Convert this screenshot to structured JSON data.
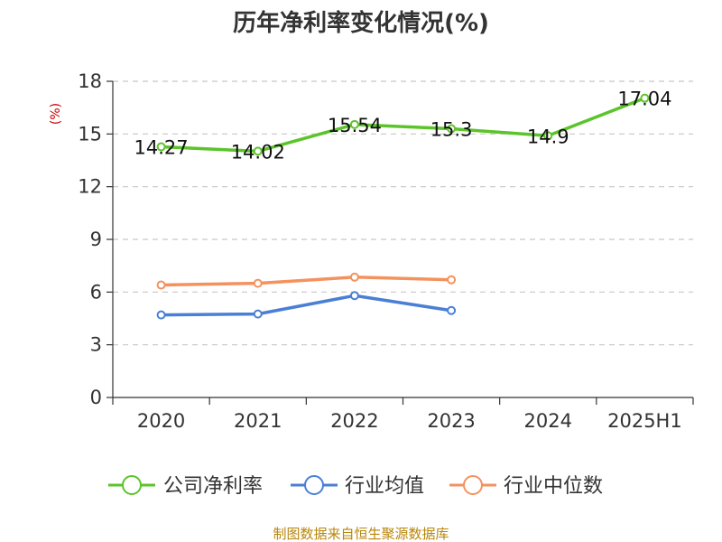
{
  "title": "历年净利率变化情况(%)",
  "source": "制图数据来自恒生聚源数据库",
  "chart_data": {
    "type": "line",
    "title": "历年净利率变化情况(%)",
    "ylabel": "(%)",
    "xlabel": "",
    "categories": [
      "2020",
      "2021",
      "2022",
      "2023",
      "2024",
      "2025H1"
    ],
    "ylim": [
      0,
      18
    ],
    "yticks": [
      0,
      3,
      6,
      9,
      12,
      15,
      18
    ],
    "grid": true,
    "legend_position": "bottom",
    "series": [
      {
        "name": "公司净利率",
        "color": "#5cc42b",
        "values": [
          14.27,
          14.02,
          15.54,
          15.3,
          14.9,
          17.04
        ],
        "labels": [
          "14.27",
          "14.02",
          "15.54",
          "15.3",
          "14.9",
          "17.04"
        ]
      },
      {
        "name": "行业均值",
        "color": "#4a7fd6",
        "values": [
          4.7,
          4.75,
          5.8,
          4.95,
          null,
          null
        ],
        "labels": []
      },
      {
        "name": "行业中位数",
        "color": "#f4925e",
        "values": [
          6.4,
          6.5,
          6.85,
          6.7,
          null,
          null
        ],
        "labels": []
      }
    ]
  }
}
